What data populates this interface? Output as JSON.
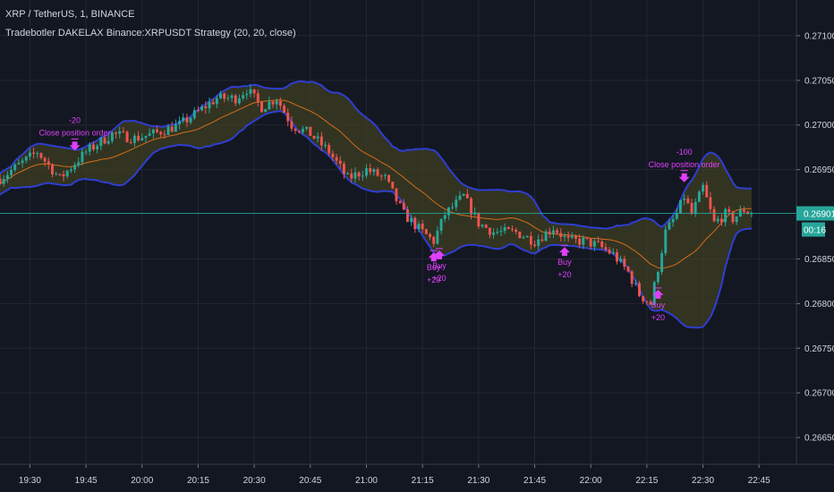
{
  "header": {
    "title": "XRP / TetherUS, 1, BINANCE",
    "subtitle": "Tradebotler DAKELAX Binance:XRPUSDT Strategy (20, 20, close)"
  },
  "chart_data": {
    "type": "candlestick",
    "x_ticks": [
      {
        "label": "19:30",
        "t": 0
      },
      {
        "label": "19:45",
        "t": 15
      },
      {
        "label": "20:00",
        "t": 30
      },
      {
        "label": "20:15",
        "t": 45
      },
      {
        "label": "20:30",
        "t": 60
      },
      {
        "label": "20:45",
        "t": 75
      },
      {
        "label": "21:00",
        "t": 90
      },
      {
        "label": "21:15",
        "t": 105
      },
      {
        "label": "21:30",
        "t": 120
      },
      {
        "label": "21:45",
        "t": 135
      },
      {
        "label": "22:00",
        "t": 150
      },
      {
        "label": "22:15",
        "t": 165
      },
      {
        "label": "22:30",
        "t": 180
      },
      {
        "label": "22:45",
        "t": 195
      }
    ],
    "y_ticks": [
      "0.27100",
      "0.27050",
      "0.27000",
      "0.26950",
      "0.26850",
      "0.26800",
      "0.26750",
      "0.26700",
      "0.26650"
    ],
    "ylim": [
      0.2662,
      0.2714
    ],
    "xlim": [
      -8,
      205
    ],
    "current_price": {
      "value": 0.26901,
      "label": "0.26901",
      "countdown": "00:16"
    },
    "colors": {
      "up": "#26a69a",
      "down": "#ef5350",
      "band_line": "#2f3ed0",
      "band_fill": "#3d3f22",
      "basis": "#ff7a1a",
      "signal": "#e040fb",
      "price_line": "#26a69a"
    },
    "annotations": [
      {
        "kind": "close",
        "t": 12,
        "value_label": "-20",
        "text": "Close position order"
      },
      {
        "kind": "buy",
        "t": 108,
        "text": "Buy",
        "value_label": "+20"
      },
      {
        "kind": "buy",
        "t": 109.5,
        "text": "Buy",
        "value_label": "+20"
      },
      {
        "kind": "buy",
        "t": 143,
        "text": "Buy",
        "value_label": "+20"
      },
      {
        "kind": "buy",
        "t": 168,
        "text": "Buy",
        "value_label": "+20"
      },
      {
        "kind": "close",
        "t": 175,
        "value_label": "-100",
        "text": "Close position order"
      }
    ],
    "anchors": [
      [
        -8,
        0.2694
      ],
      [
        2,
        0.2697
      ],
      [
        8,
        0.2694
      ],
      [
        15,
        0.2697
      ],
      [
        22,
        0.2699
      ],
      [
        28,
        0.26985
      ],
      [
        33,
        0.2699
      ],
      [
        40,
        0.27
      ],
      [
        45,
        0.27015
      ],
      [
        50,
        0.2703
      ],
      [
        55,
        0.2703
      ],
      [
        58,
        0.2704
      ],
      [
        62,
        0.2702
      ],
      [
        66,
        0.2703
      ],
      [
        70,
        0.27
      ],
      [
        75,
        0.2699
      ],
      [
        80,
        0.2697
      ],
      [
        85,
        0.2694
      ],
      [
        90,
        0.2695
      ],
      [
        95,
        0.2694
      ],
      [
        100,
        0.269
      ],
      [
        105,
        0.2688
      ],
      [
        108,
        0.2687
      ],
      [
        111,
        0.269
      ],
      [
        116,
        0.2692
      ],
      [
        120,
        0.2689
      ],
      [
        124,
        0.2688
      ],
      [
        130,
        0.2688
      ],
      [
        135,
        0.2687
      ],
      [
        140,
        0.26885
      ],
      [
        144,
        0.2687
      ],
      [
        148,
        0.2687
      ],
      [
        152,
        0.26865
      ],
      [
        156,
        0.26855
      ],
      [
        160,
        0.26835
      ],
      [
        163,
        0.2681
      ],
      [
        166,
        0.268
      ],
      [
        168,
        0.2684
      ],
      [
        170,
        0.2688
      ],
      [
        173,
        0.269
      ],
      [
        175,
        0.2692
      ],
      [
        177,
        0.269
      ],
      [
        180,
        0.2693
      ],
      [
        183,
        0.2689
      ],
      [
        186,
        0.269
      ],
      [
        188,
        0.26895
      ],
      [
        191,
        0.26905
      ],
      [
        193,
        0.269
      ]
    ],
    "candle_range": [
      -8,
      193
    ]
  }
}
